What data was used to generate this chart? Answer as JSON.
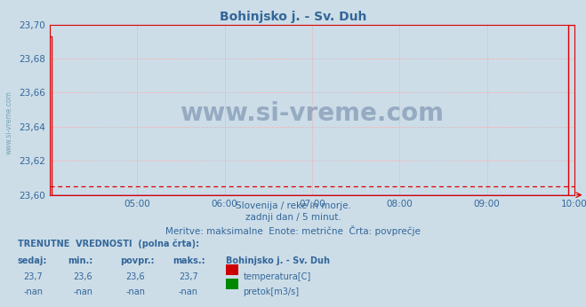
{
  "title": "Bohinjsko j. - Sv. Duh",
  "bg_color": "#ccdde8",
  "plot_bg_color": "#ccdde8",
  "grid_color": "#ff9999",
  "line_color": "#dd0000",
  "avg_line_color": "#dd0000",
  "blue_line_color": "#4444cc",
  "text_color": "#336699",
  "title_color": "#336699",
  "ymin": 23.6,
  "ymax": 23.7,
  "yticks": [
    23.6,
    23.62,
    23.64,
    23.66,
    23.68,
    23.7
  ],
  "xtick_labels": [
    "05:00",
    "06:00",
    "07:00",
    "08:00",
    "09:00",
    "10:00"
  ],
  "xtick_positions": [
    1,
    2,
    3,
    4,
    5,
    6
  ],
  "x_total": 6.0,
  "subtitle1": "Slovenija / reke in morje.",
  "subtitle2": "zadnji dan / 5 minut.",
  "subtitle3": "Meritve: maksimalne  Enote: metrične  Črta: povprečje",
  "watermark": "www.si-vreme.com",
  "watermark_color": "#1a3a6b",
  "watermark_alpha": 0.3,
  "sidebar_text": "www.si-vreme.com",
  "sidebar_color": "#6699aa",
  "footer_label1": "TRENUTNE  VREDNOSTI  (polna črta):",
  "footer_col1": "sedaj:",
  "footer_col2": "min.:",
  "footer_col3": "povpr.:",
  "footer_col4": "maks.:",
  "footer_col5": "Bohinjsko j. - Sv. Duh",
  "footer_val_temp": [
    "23,7",
    "23,6",
    "23,6",
    "23,7"
  ],
  "footer_val_flow": [
    "-nan",
    "-nan",
    "-nan",
    "-nan"
  ],
  "legend_temp": "temperatura[C]",
  "legend_flow": "pretok[m3/s]",
  "temp_color": "#cc0000",
  "flow_color": "#008800",
  "avg_value": 23.605,
  "temp_x": [
    0.0,
    0.02,
    0.02,
    5.93,
    5.93,
    6.0
  ],
  "temp_y": [
    23.693,
    23.693,
    23.6,
    23.6,
    23.7,
    23.7
  ]
}
